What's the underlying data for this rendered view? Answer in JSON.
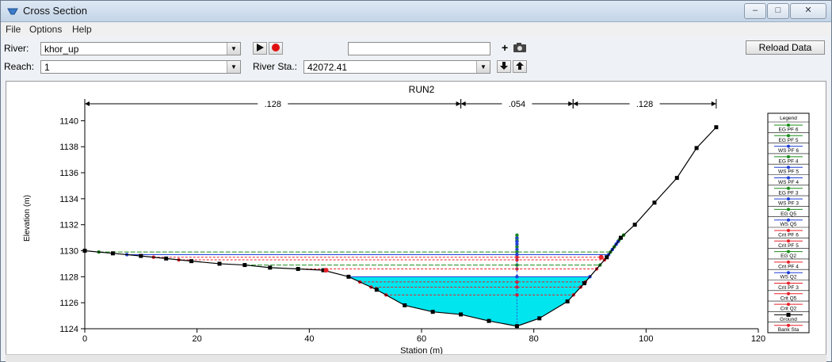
{
  "window": {
    "title": "Cross Section",
    "controls": [
      "–",
      "□",
      "✕"
    ]
  },
  "menu": {
    "items": [
      "File",
      "Options",
      "Help"
    ]
  },
  "toolbar": {
    "river_label": "River:",
    "river_value": "khor_up",
    "reach_label": "Reach:",
    "reach_value": "1",
    "river_sta_label": "River Sta.:",
    "river_sta_value": "42072.41",
    "plus_label": "+",
    "reload_label": "Reload Data"
  },
  "icons": {
    "play": "play-icon",
    "record": "record-icon",
    "camera": "camera-icon",
    "down": "arrow-down-icon",
    "up": "arrow-up-icon"
  },
  "colors": {
    "water_fill": "#00e5ee",
    "ground": "#000000",
    "bank_station": "#e8202a",
    "eg": "#1a8c1a",
    "ws": "#1f3fd6",
    "crit": "#e8202a"
  },
  "chart_data": {
    "type": "line",
    "title": "RUN2",
    "xlabel": "Station (m)",
    "ylabel": "Elevation (m)",
    "xlim": [
      0,
      120
    ],
    "ylim": [
      1124,
      1141
    ],
    "xticks": [
      0,
      20,
      40,
      60,
      80,
      100,
      120
    ],
    "yticks": [
      1124,
      1126,
      1128,
      1130,
      1132,
      1134,
      1136,
      1138,
      1140
    ],
    "manning": [
      {
        "from": 0,
        "to": 67,
        "label": ".128"
      },
      {
        "from": 67,
        "to": 87,
        "label": ".054"
      },
      {
        "from": 87,
        "to": 112.5,
        "label": ".128"
      }
    ],
    "ground": {
      "name": "Ground",
      "x": [
        0,
        5,
        10,
        14.5,
        19,
        24,
        28.5,
        33,
        38,
        42.5,
        47,
        52,
        57,
        62,
        67,
        72,
        77,
        81,
        86,
        89,
        93,
        95.5,
        98,
        101.5,
        105.5,
        109,
        112.5
      ],
      "y": [
        1130.0,
        1129.8,
        1129.6,
        1129.4,
        1129.2,
        1129.0,
        1128.9,
        1128.7,
        1128.6,
        1128.5,
        1128.0,
        1127.0,
        1125.8,
        1125.3,
        1125.1,
        1124.6,
        1124.2,
        1124.8,
        1126.1,
        1127.5,
        1129.5,
        1131.0,
        1132.0,
        1133.7,
        1135.6,
        1137.9,
        1139.5
      ]
    },
    "bank_stations": {
      "name": "Bank Sta",
      "x": [
        43,
        92
      ],
      "y": [
        1128.5,
        1129.5
      ]
    },
    "water_lines": [
      {
        "name": "EG PF 6",
        "y": 1131.2,
        "style": "eg"
      },
      {
        "name": "EG PF 5",
        "y": 1131.0,
        "style": "eg"
      },
      {
        "name": "WS PF 6",
        "y": 1130.95,
        "style": "ws"
      },
      {
        "name": "EG PF 4",
        "y": 1130.8,
        "style": "eg"
      },
      {
        "name": "WS PF 5",
        "y": 1130.7,
        "style": "ws"
      },
      {
        "name": "WS PF 4",
        "y": 1130.5,
        "style": "ws"
      },
      {
        "name": "EG PF 3",
        "y": 1130.3,
        "style": "eg"
      },
      {
        "name": "WS PF 3",
        "y": 1130.1,
        "style": "ws"
      },
      {
        "name": "EG Q5",
        "y": 1129.9,
        "style": "eg"
      },
      {
        "name": "WS Q5",
        "y": 1129.7,
        "style": "ws"
      },
      {
        "name": "Crit PF 6",
        "y": 1129.5,
        "style": "crit"
      },
      {
        "name": "Crit PF 5",
        "y": 1129.3,
        "style": "crit"
      },
      {
        "name": "EG Q2",
        "y": 1128.9,
        "style": "eg"
      },
      {
        "name": "Crit PF 4",
        "y": 1128.6,
        "style": "crit"
      },
      {
        "name": "WS Q2",
        "y": 1128.0,
        "style": "ws"
      },
      {
        "name": "Crit PF 3",
        "y": 1127.6,
        "style": "crit"
      },
      {
        "name": "Crit Q5",
        "y": 1127.2,
        "style": "crit"
      },
      {
        "name": "Crit Q2",
        "y": 1126.6,
        "style": "crit"
      }
    ],
    "water_fill_level": 1128.0,
    "vertical_marker_x": 77,
    "legend_title": "Legend",
    "legend_position": "right",
    "legend": [
      {
        "label": "EG PF 6",
        "style": "eg"
      },
      {
        "label": "EG PF 5",
        "style": "eg"
      },
      {
        "label": "WS PF 6",
        "style": "ws"
      },
      {
        "label": "EG PF 4",
        "style": "eg"
      },
      {
        "label": "WS PF 5",
        "style": "ws"
      },
      {
        "label": "WS PF 4",
        "style": "ws"
      },
      {
        "label": "EG PF 3",
        "style": "eg"
      },
      {
        "label": "WS PF 3",
        "style": "ws"
      },
      {
        "label": "EG Q5",
        "style": "eg"
      },
      {
        "label": "WS Q5",
        "style": "ws"
      },
      {
        "label": "Crit PF 6",
        "style": "crit"
      },
      {
        "label": "Crit PF 5",
        "style": "crit"
      },
      {
        "label": "EG Q2",
        "style": "eg"
      },
      {
        "label": "Crit PF 4",
        "style": "crit"
      },
      {
        "label": "WS Q2",
        "style": "ws"
      },
      {
        "label": "Crit PF 3",
        "style": "crit"
      },
      {
        "label": "Crit Q5",
        "style": "crit"
      },
      {
        "label": "Crit Q2",
        "style": "crit"
      },
      {
        "label": "Ground",
        "style": "ground"
      },
      {
        "label": "Bank Sta",
        "style": "bank"
      }
    ]
  }
}
